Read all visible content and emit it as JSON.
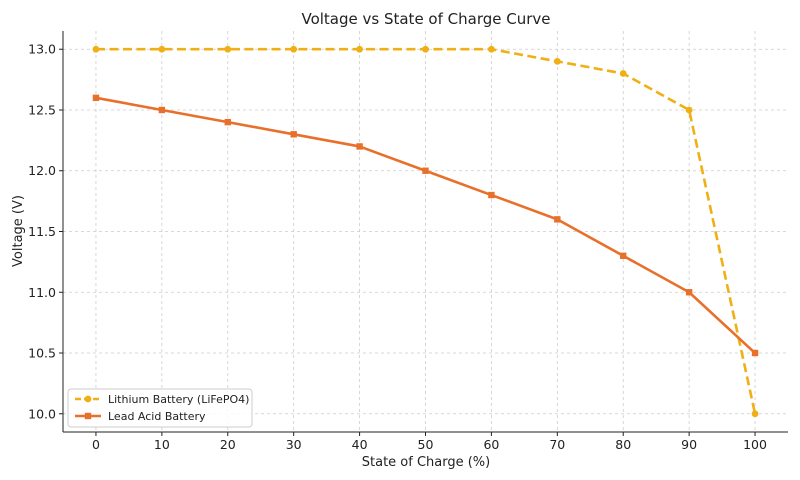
{
  "chart_data": {
    "type": "line",
    "title": "Voltage vs State of Charge Curve",
    "xlabel": "State of Charge (%)",
    "ylabel": "Voltage (V)",
    "x": [
      0,
      10,
      20,
      30,
      40,
      50,
      60,
      70,
      80,
      90,
      100
    ],
    "xlim": [
      -5,
      105
    ],
    "ylim": [
      9.85,
      13.15
    ],
    "xticks": [
      0,
      10,
      20,
      30,
      40,
      50,
      60,
      70,
      80,
      90,
      100
    ],
    "yticks": [
      10.0,
      10.5,
      11.0,
      11.5,
      12.0,
      12.5,
      13.0
    ],
    "grid": true,
    "legend_position": "lower-left",
    "series": [
      {
        "name": "Lithium Battery (LiFePO4)",
        "color": "#F0B015",
        "line_style": "dashed",
        "marker": "circle",
        "values": [
          13.0,
          13.0,
          13.0,
          13.0,
          13.0,
          13.0,
          13.0,
          12.9,
          12.8,
          12.5,
          10.0
        ]
      },
      {
        "name": "Lead Acid Battery",
        "color": "#E8702A",
        "line_style": "solid",
        "marker": "square",
        "values": [
          12.6,
          12.5,
          12.4,
          12.3,
          12.2,
          12.0,
          11.8,
          11.6,
          11.3,
          11.0,
          10.5
        ]
      }
    ]
  }
}
